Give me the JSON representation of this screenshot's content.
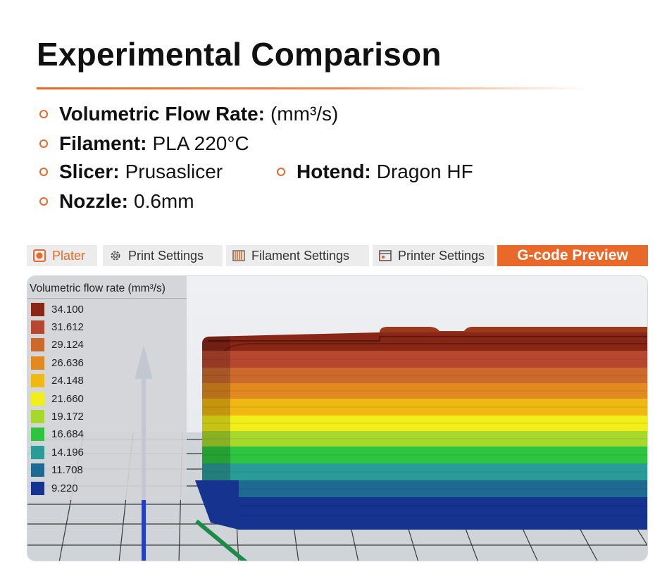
{
  "header": {
    "title": "Experimental Comparison"
  },
  "specs": [
    {
      "label": "Volumetric Flow Rate:",
      "value": "(mm³/s)"
    },
    {
      "label": "Filament:",
      "value": "PLA 220°C"
    },
    {
      "label": "Slicer:",
      "value": "Prusaslicer"
    },
    {
      "label": "Hotend:",
      "value": "Dragon HF"
    },
    {
      "label": "Nozzle:",
      "value": "0.6mm"
    }
  ],
  "accent_color": "#e8692a",
  "tabs": [
    {
      "label": "Plater",
      "icon": "plater-icon"
    },
    {
      "label": "Print Settings",
      "icon": "gear-icon"
    },
    {
      "label": "Filament Settings",
      "icon": "filament-spool-icon"
    },
    {
      "label": "Printer Settings",
      "icon": "printer-icon"
    },
    {
      "label": "G-code Preview",
      "active": true
    }
  ],
  "legend": {
    "title": "Volumetric flow rate (mm³/s)",
    "items": [
      {
        "value": "34.100",
        "color": "#8a2616"
      },
      {
        "value": "31.612",
        "color": "#b8472f"
      },
      {
        "value": "29.124",
        "color": "#cc6a2e"
      },
      {
        "value": "26.636",
        "color": "#e28a1f"
      },
      {
        "value": "24.148",
        "color": "#f0b813"
      },
      {
        "value": "21.660",
        "color": "#f2ee19"
      },
      {
        "value": "19.172",
        "color": "#a6d92b"
      },
      {
        "value": "16.684",
        "color": "#2ec43f"
      },
      {
        "value": "14.196",
        "color": "#2a9c98"
      },
      {
        "value": "11.708",
        "color": "#1f6a93"
      },
      {
        "value": "9.220",
        "color": "#15338f"
      }
    ]
  }
}
